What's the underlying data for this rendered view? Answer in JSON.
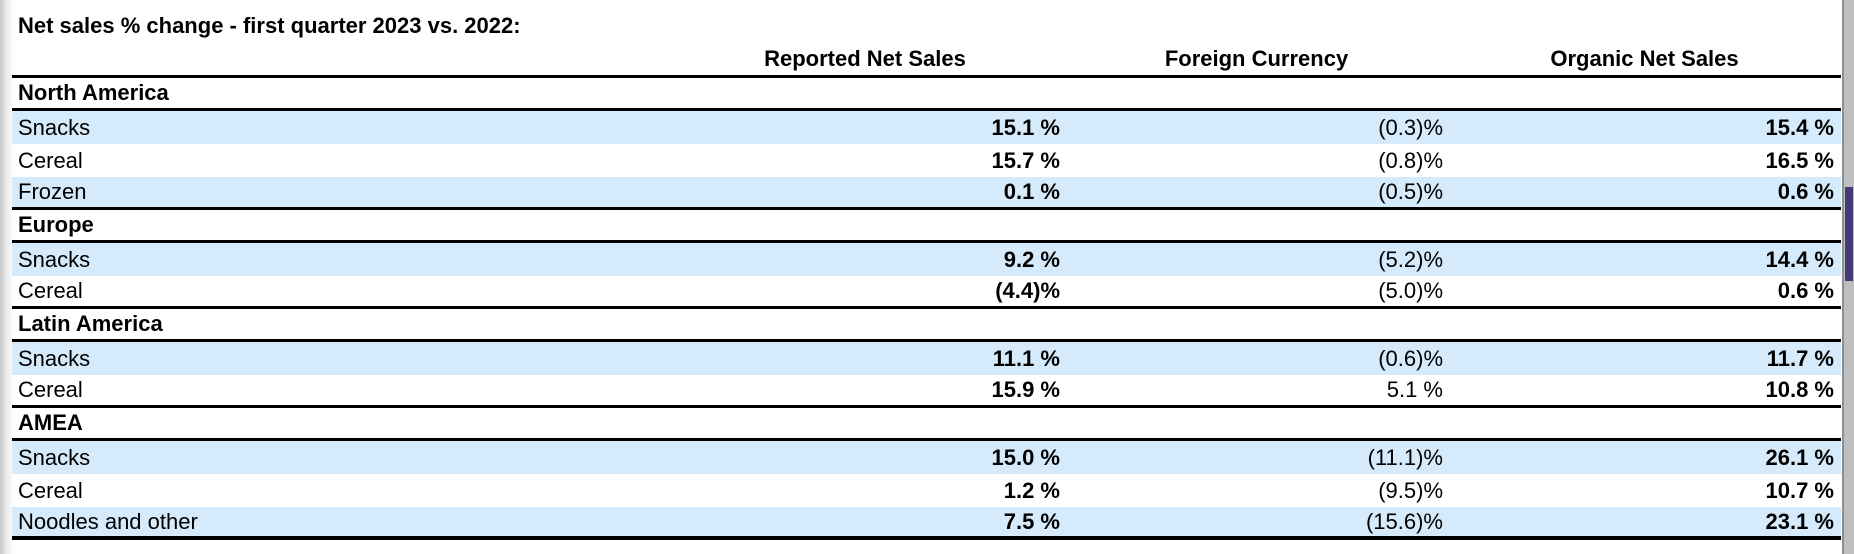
{
  "page": {
    "title": "Net sales % change - first quarter 2023 vs. 2022:"
  },
  "table": {
    "columns": [
      "Reported Net Sales",
      "Foreign Currency",
      "Organic Net Sales"
    ],
    "sections": [
      {
        "region": "North America",
        "rows": [
          {
            "label": "Snacks",
            "reported": "15.1 %",
            "foreign_currency": "(0.3)%",
            "organic": "15.4 %"
          },
          {
            "label": "Cereal",
            "reported": "15.7 %",
            "foreign_currency": "(0.8)%",
            "organic": "16.5 %"
          },
          {
            "label": "Frozen",
            "reported": "0.1 %",
            "foreign_currency": "(0.5)%",
            "organic": "0.6 %"
          }
        ]
      },
      {
        "region": "Europe",
        "rows": [
          {
            "label": "Snacks",
            "reported": "9.2 %",
            "foreign_currency": "(5.2)%",
            "organic": "14.4 %"
          },
          {
            "label": "Cereal",
            "reported": "(4.4)%",
            "foreign_currency": "(5.0)%",
            "organic": "0.6 %"
          }
        ]
      },
      {
        "region": "Latin America",
        "rows": [
          {
            "label": "Snacks",
            "reported": "11.1 %",
            "foreign_currency": "(0.6)%",
            "organic": "11.7 %"
          },
          {
            "label": "Cereal",
            "reported": "15.9 %",
            "foreign_currency": "5.1 %",
            "organic": "10.8 %"
          }
        ]
      },
      {
        "region": "AMEA",
        "rows": [
          {
            "label": "Snacks",
            "reported": "15.0 %",
            "foreign_currency": "(11.1)%",
            "organic": "26.1 %"
          },
          {
            "label": "Cereal",
            "reported": "1.2 %",
            "foreign_currency": "(9.5)%",
            "organic": "10.7 %"
          },
          {
            "label": "Noodles and other",
            "reported": "7.5 %",
            "foreign_currency": "(15.6)%",
            "organic": "23.1 %"
          }
        ]
      }
    ]
  },
  "colors": {
    "row_highlight": "#d5eafa",
    "table_border": "#000000",
    "scrollbar_thumb": "#44397b"
  }
}
